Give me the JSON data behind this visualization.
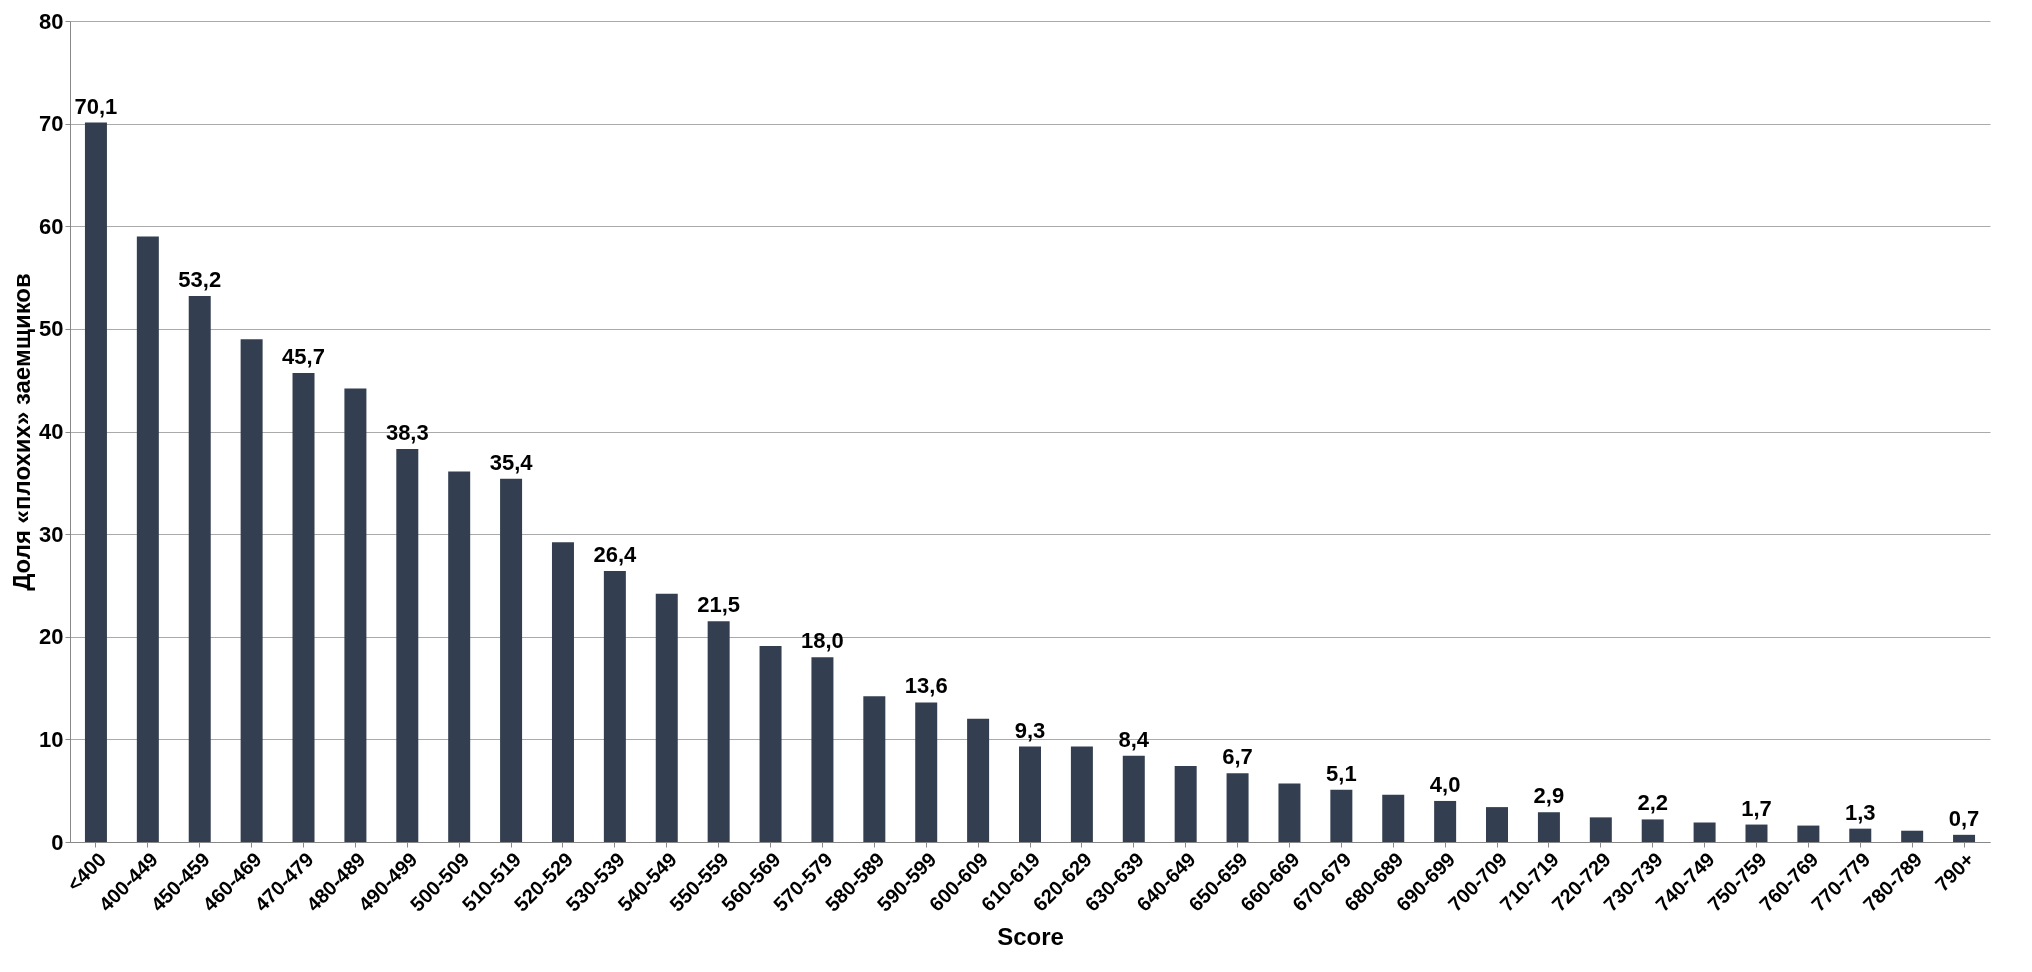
{
  "chart_data": {
    "type": "bar",
    "xlabel": "Score",
    "ylabel": "Доля «плохих» заемщиков",
    "categories": [
      "<400",
      "400-449",
      "450-459",
      "460-469",
      "470-479",
      "480-489",
      "490-499",
      "500-509",
      "510-519",
      "520-529",
      "530-539",
      "540-549",
      "550-559",
      "560-569",
      "570-579",
      "580-589",
      "590-599",
      "600-609",
      "610-619",
      "620-629",
      "630-639",
      "640-649",
      "650-659",
      "660-669",
      "670-679",
      "680-689",
      "690-699",
      "700-709",
      "710-719",
      "720-729",
      "730-739",
      "740-749",
      "750-759",
      "760-769",
      "770-779",
      "780-789",
      "790+"
    ],
    "values": [
      70.1,
      59,
      53.2,
      49,
      45.7,
      44.2,
      38.3,
      36.1,
      35.4,
      29.2,
      26.4,
      24.2,
      21.5,
      19.1,
      18.0,
      14.2,
      13.6,
      12.0,
      9.3,
      9.3,
      8.4,
      7.4,
      6.7,
      5.7,
      5.1,
      4.6,
      4.0,
      3.4,
      2.9,
      2.4,
      2.2,
      1.9,
      1.7,
      1.6,
      1.3,
      1.1,
      0.7
    ],
    "value_labels": [
      "70,1",
      null,
      "53,2",
      null,
      "45,7",
      null,
      "38,3",
      null,
      "35,4",
      null,
      "26,4",
      null,
      "21,5",
      null,
      "18,0",
      null,
      "13,6",
      null,
      "9,3",
      null,
      "8,4",
      null,
      "6,7",
      null,
      "5,1",
      null,
      "4,0",
      null,
      "2,9",
      null,
      "2,2",
      null,
      "1,7",
      null,
      "1,3",
      null,
      "0,7"
    ],
    "color": "#333f50",
    "ylim": [
      0,
      80
    ],
    "yticks": [
      0,
      10,
      20,
      30,
      40,
      50,
      60,
      70,
      80
    ],
    "grid": "y"
  }
}
